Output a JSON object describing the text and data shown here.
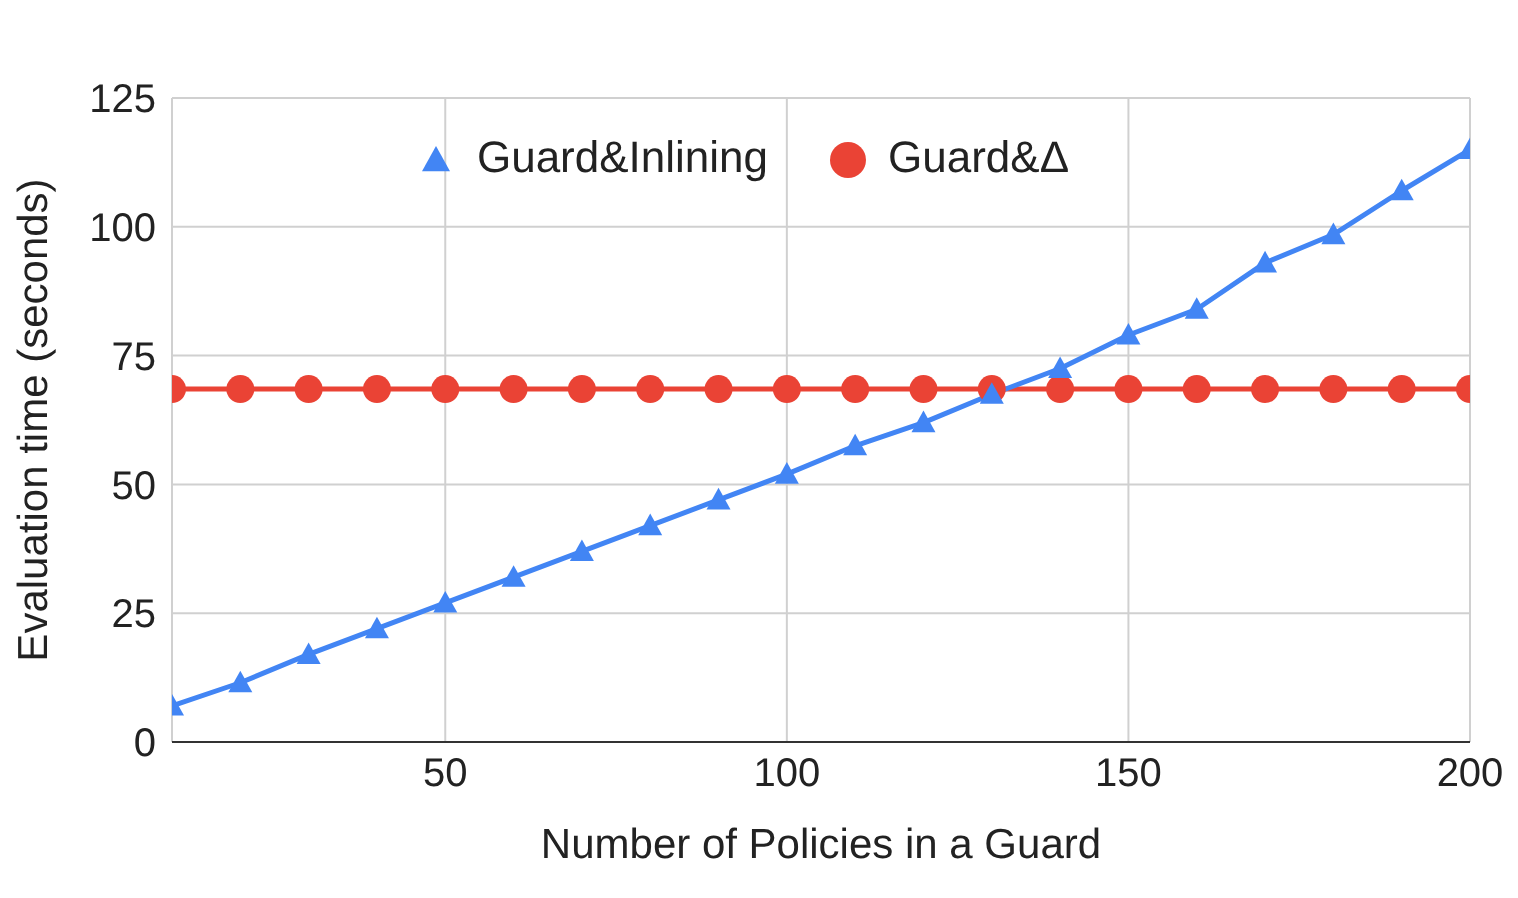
{
  "chart_data": {
    "type": "line",
    "xlabel": "Number of Policies in a Guard",
    "ylabel": "Evaluation time (seconds)",
    "x": [
      10,
      20,
      30,
      40,
      50,
      60,
      70,
      80,
      90,
      100,
      110,
      120,
      130,
      140,
      150,
      160,
      170,
      180,
      190,
      200
    ],
    "series": [
      {
        "name": "Guard&Inlining",
        "color": "#4285f4",
        "marker": "triangle",
        "values": [
          7,
          11.5,
          17,
          22,
          27,
          32,
          37,
          42,
          47,
          52,
          57.5,
          62,
          67.5,
          72.5,
          79,
          84,
          93,
          98.5,
          107,
          115
        ]
      },
      {
        "name": "Guard&Δ",
        "color": "#ea4335",
        "marker": "circle",
        "values": [
          68.5,
          68.5,
          68.5,
          68.5,
          68.5,
          68.5,
          68.5,
          68.5,
          68.5,
          68.5,
          68.5,
          68.5,
          68.5,
          68.5,
          68.5,
          68.5,
          68.5,
          68.5,
          68.5,
          68.5
        ]
      }
    ],
    "xlim": [
      10,
      200
    ],
    "xticks": [
      50,
      100,
      150,
      200
    ],
    "ylim": [
      0,
      125
    ],
    "yticks": [
      0,
      25,
      50,
      75,
      100,
      125
    ],
    "grid": true,
    "legend": "top",
    "line_style": "solid"
  }
}
